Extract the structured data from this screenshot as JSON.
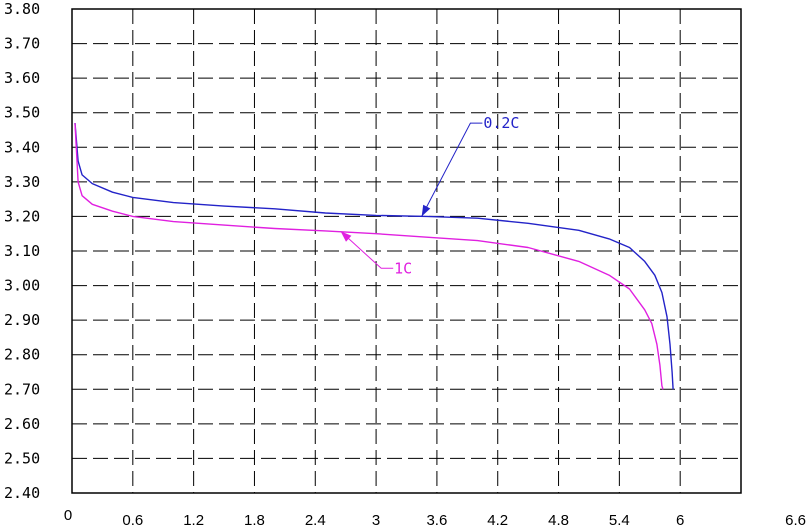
{
  "chart_data": {
    "type": "line",
    "title": "",
    "xlabel": "",
    "ylabel": "",
    "xlim": [
      0,
      6.6
    ],
    "ylim": [
      2.4,
      3.8
    ],
    "x_ticks": [
      "0",
      "0.6",
      "1.2",
      "1.8",
      "2.4",
      "3",
      "3.6",
      "4.2",
      "4.8",
      "5.4",
      "6",
      "6.6"
    ],
    "y_ticks": [
      "2.40",
      "2.50",
      "2.60",
      "2.70",
      "2.80",
      "2.90",
      "3.00",
      "3.10",
      "3.20",
      "3.30",
      "3.40",
      "3.50",
      "3.60",
      "3.70",
      "3.80"
    ],
    "grid": true,
    "series": [
      {
        "name": "0.2C",
        "color": "#2323c8",
        "points": [
          [
            0.03,
            3.47
          ],
          [
            0.06,
            3.36
          ],
          [
            0.1,
            3.32
          ],
          [
            0.2,
            3.295
          ],
          [
            0.4,
            3.27
          ],
          [
            0.6,
            3.255
          ],
          [
            1.0,
            3.24
          ],
          [
            1.5,
            3.23
          ],
          [
            2.0,
            3.222
          ],
          [
            2.5,
            3.21
          ],
          [
            3.0,
            3.203
          ],
          [
            3.5,
            3.2
          ],
          [
            4.0,
            3.195
          ],
          [
            4.5,
            3.18
          ],
          [
            5.0,
            3.16
          ],
          [
            5.3,
            3.135
          ],
          [
            5.5,
            3.11
          ],
          [
            5.65,
            3.07
          ],
          [
            5.75,
            3.03
          ],
          [
            5.82,
            2.98
          ],
          [
            5.87,
            2.91
          ],
          [
            5.9,
            2.83
          ],
          [
            5.92,
            2.75
          ],
          [
            5.93,
            2.7
          ]
        ]
      },
      {
        "name": "1C",
        "color": "#e020e0",
        "points": [
          [
            0.03,
            3.47
          ],
          [
            0.06,
            3.3
          ],
          [
            0.1,
            3.26
          ],
          [
            0.2,
            3.235
          ],
          [
            0.4,
            3.215
          ],
          [
            0.6,
            3.2
          ],
          [
            1.0,
            3.185
          ],
          [
            1.5,
            3.175
          ],
          [
            2.0,
            3.165
          ],
          [
            2.5,
            3.158
          ],
          [
            3.0,
            3.15
          ],
          [
            3.5,
            3.14
          ],
          [
            4.0,
            3.13
          ],
          [
            4.5,
            3.11
          ],
          [
            5.0,
            3.07
          ],
          [
            5.3,
            3.03
          ],
          [
            5.5,
            2.99
          ],
          [
            5.65,
            2.93
          ],
          [
            5.72,
            2.89
          ],
          [
            5.77,
            2.83
          ],
          [
            5.8,
            2.77
          ],
          [
            5.82,
            2.71
          ],
          [
            5.83,
            2.7
          ]
        ]
      }
    ],
    "annotations": [
      {
        "series": "0.2C",
        "text": "0.2C",
        "color": "#2323c8",
        "point": [
          3.45,
          3.2
        ],
        "label_at": [
          3.93,
          3.47
        ]
      },
      {
        "series": "1C",
        "text": "1C",
        "color": "#e020e0",
        "point": [
          2.65,
          3.157
        ],
        "label_at": [
          3.05,
          3.05
        ]
      }
    ]
  }
}
